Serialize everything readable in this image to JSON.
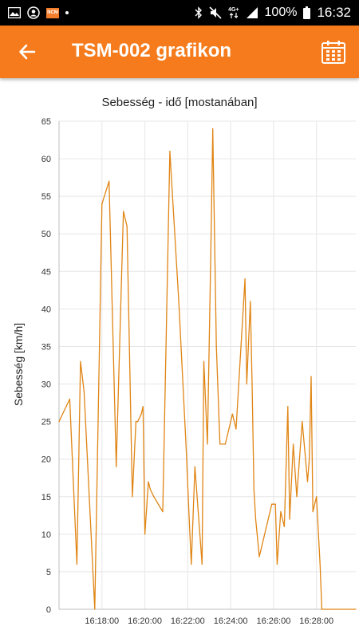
{
  "status_bar": {
    "network": "4G+",
    "battery": "100%",
    "time": "16:32",
    "notification_badge": "NCM"
  },
  "app_bar": {
    "title": "TSM-002 grafikon",
    "bg_color": "#f67b1c"
  },
  "icons": {
    "back": "arrow-back-icon",
    "calendar": "calendar-icon"
  },
  "chart_data": {
    "type": "line",
    "title": "Sebesség - idő [mostanában]",
    "xlabel": "",
    "ylabel": "Sebesség [km/h]",
    "ylim": [
      0,
      65
    ],
    "yticks": [
      0,
      5,
      10,
      15,
      20,
      25,
      30,
      35,
      40,
      45,
      50,
      55,
      60,
      65
    ],
    "xlim": [
      "16:16:00",
      "16:29:50"
    ],
    "xticks": [
      "16:18:00",
      "16:20:00",
      "16:22:00",
      "16:24:00",
      "16:26:00",
      "16:28:00"
    ],
    "grid": true,
    "line_color": "#e08514",
    "series": [
      {
        "x": [
          "16:16:00",
          "16:16:30",
          "16:16:50",
          "16:17:00",
          "16:17:10",
          "16:17:40",
          "16:18:00",
          "16:18:20",
          "16:18:40",
          "16:19:00",
          "16:19:10",
          "16:19:25",
          "16:19:35",
          "16:19:40",
          "16:19:50",
          "16:19:55",
          "16:20:00",
          "16:20:10",
          "16:20:15",
          "16:20:25",
          "16:20:50",
          "16:21:10",
          "16:21:35",
          "16:21:55",
          "16:22:05",
          "16:22:10",
          "16:22:20",
          "16:22:40",
          "16:22:45",
          "16:22:55",
          "16:23:05",
          "16:23:10",
          "16:23:20",
          "16:23:30",
          "16:23:45",
          "16:24:05",
          "16:24:10",
          "16:24:15",
          "16:24:40",
          "16:24:45",
          "16:24:55",
          "16:25:00",
          "16:25:05",
          "16:25:10",
          "16:25:20",
          "16:25:55",
          "16:26:05",
          "16:26:10",
          "16:26:20",
          "16:26:30",
          "16:26:40",
          "16:26:45",
          "16:26:55",
          "16:27:05",
          "16:27:20",
          "16:27:35",
          "16:27:40",
          "16:27:45",
          "16:27:50",
          "16:28:00",
          "16:28:10",
          "16:28:15",
          "16:28:20",
          "16:28:25",
          "16:28:30",
          "16:28:35",
          "16:28:40",
          "16:29:00",
          "16:29:50"
        ],
        "values": [
          25,
          28,
          6,
          33,
          29,
          0,
          54,
          57,
          19,
          53,
          51,
          15,
          25,
          25,
          26,
          27,
          10,
          17,
          16,
          15,
          13,
          61,
          41,
          22,
          11,
          6,
          19,
          6,
          33,
          22,
          49,
          64,
          35,
          22,
          22,
          26,
          25,
          24,
          44,
          30,
          41,
          30,
          16,
          12,
          7,
          14,
          14,
          6,
          13,
          11,
          27,
          12,
          22,
          15,
          25,
          17,
          20,
          31,
          13,
          15,
          6,
          0,
          0,
          0,
          0,
          0,
          0,
          0,
          0
        ]
      }
    ]
  }
}
